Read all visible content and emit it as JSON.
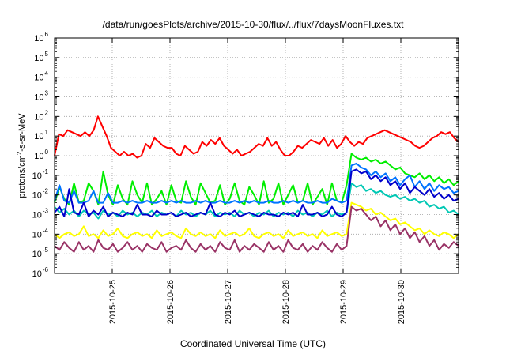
{
  "chart_data": {
    "type": "line",
    "title": "/data/run/goesPlots/archive/2015-10-30/flux/../flux/7daysMoonFluxes.txt",
    "xlabel": "Coordinated Universal Time (UTC)",
    "ylabel_parts": {
      "base": "protons/cm",
      "sup": "2",
      "rest": "-s-sr-MeV"
    },
    "y_scale": "log",
    "x_range_days": [
      0,
      7
    ],
    "ylim_exp": [
      -6,
      6
    ],
    "x_ticks": [
      {
        "day": 1,
        "label": "2015-10-25"
      },
      {
        "day": 2,
        "label": "2015-10-26"
      },
      {
        "day": 3,
        "label": "2015-10-27"
      },
      {
        "day": 4,
        "label": "2015-10-28"
      },
      {
        "day": 5,
        "label": "2015-10-29"
      },
      {
        "day": 6,
        "label": "2015-10-30"
      }
    ],
    "y_ticks_exp": [
      -6,
      -5,
      -4,
      -3,
      -2,
      -1,
      0,
      1,
      2,
      3,
      4,
      5,
      6
    ],
    "grid": true,
    "series": [
      {
        "color": "#ff0000",
        "exp": [
          0.0,
          1.1,
          1.0,
          1.3,
          1.2,
          1.1,
          1.0,
          1.2,
          1.0,
          1.3,
          2.0,
          1.5,
          1.0,
          0.4,
          0.2,
          0.0,
          0.2,
          0.0,
          0.1,
          -0.1,
          0.0,
          0.6,
          0.4,
          0.9,
          0.7,
          0.5,
          0.4,
          0.4,
          0.1,
          0.0,
          0.5,
          0.3,
          0.1,
          0.2,
          0.7,
          0.5,
          0.8,
          0.6,
          0.9,
          0.5,
          0.3,
          0.1,
          0.3,
          0.0,
          0.1,
          0.2,
          0.4,
          0.6,
          0.5,
          0.9,
          0.5,
          0.7,
          0.3,
          0.0,
          0.0,
          0.2,
          0.5,
          0.4,
          0.6,
          0.8,
          0.7,
          0.6,
          0.9,
          0.5,
          0.8,
          0.4,
          0.6,
          1.0,
          0.7,
          0.5,
          0.7,
          0.6,
          0.9,
          1.0,
          1.1,
          1.2,
          1.3,
          1.2,
          1.1,
          1.0,
          0.9,
          0.8,
          0.7,
          0.5,
          0.4,
          0.5,
          0.7,
          0.9,
          1.0,
          1.2,
          1.1,
          1.2,
          0.9,
          0.7
        ]
      },
      {
        "color": "#00ee00",
        "exp": [
          -2.4,
          -1.6,
          -2.2,
          -2.5,
          -1.4,
          -2.4,
          -2.3,
          -1.4,
          -1.8,
          -2.5,
          -0.8,
          -2.0,
          -2.5,
          -1.5,
          -2.2,
          -2.5,
          -1.3,
          -2.0,
          -2.4,
          -1.4,
          -2.5,
          -2.2,
          -1.8,
          -2.5,
          -1.5,
          -2.3,
          -2.4,
          -1.3,
          -2.1,
          -2.5,
          -1.4,
          -1.9,
          -2.4,
          -2.3,
          -1.5,
          -2.5,
          -2.2,
          -1.4,
          -2.3,
          -2.5,
          -1.6,
          -2.0,
          -2.5,
          -1.3,
          -2.4,
          -2.2,
          -1.4,
          -2.5,
          -2.0,
          -1.5,
          -2.4,
          -2.3,
          -1.4,
          -2.5,
          -2.1,
          -1.7,
          -2.5,
          -1.4,
          -2.3,
          -2.4,
          -1.5,
          0.1,
          -0.1,
          -0.2,
          -0.1,
          -0.3,
          -0.2,
          -0.4,
          -0.3,
          -0.5,
          -0.7,
          -0.6,
          -0.9,
          -1.0,
          -1.1,
          -0.9,
          -1.2,
          -1.0,
          -1.3,
          -1.1,
          -1.4,
          -1.2,
          -1.5,
          -1.3
        ]
      },
      {
        "color": "#0073ff",
        "exp": [
          -2.3,
          -1.5,
          -2.3,
          -2.4,
          -1.8,
          -2.4,
          -2.4,
          -2.3,
          -1.8,
          -2.4,
          -2.4,
          -1.9,
          -2.4,
          -2.4,
          -2.3,
          -2.4,
          -2.3,
          -2.4,
          -2.4,
          -2.3,
          -2.4,
          -2.4,
          -2.3,
          -2.4,
          -2.3,
          -2.4,
          -2.3,
          -2.4,
          -2.4,
          -2.3,
          -2.4,
          -2.3,
          -2.4,
          -2.4,
          -2.3,
          -2.4,
          -2.4,
          -2.3,
          -2.4,
          -2.3,
          -2.4,
          -2.3,
          -2.4,
          -2.4,
          -2.3,
          -2.4,
          -2.4,
          -2.3,
          -2.4,
          -2.3,
          -2.4,
          -2.3,
          -2.4,
          -2.4,
          -2.3,
          -2.4,
          -2.4,
          -2.2,
          -2.3,
          -2.4,
          -2.3,
          -0.5,
          -0.4,
          -0.6,
          -0.7,
          -1.0,
          -0.8,
          -1.1,
          -0.9,
          -1.3,
          -1.1,
          -1.5,
          -1.2,
          -1.0,
          -1.6,
          -1.3,
          -1.7,
          -1.4,
          -1.8,
          -1.5,
          -1.7,
          -1.6,
          -1.9,
          -1.8
        ]
      },
      {
        "color": "#00c8b4",
        "exp": [
          -2.6,
          -2.9,
          -2.7,
          -3.0,
          -2.8,
          -3.1,
          -2.8,
          -3.0,
          -2.9,
          -3.2,
          -2.8,
          -3.0,
          -2.9,
          -3.1,
          -2.8,
          -3.0,
          -2.9,
          -3.1,
          -2.9,
          -3.0,
          -2.8,
          -3.1,
          -2.9,
          -3.0,
          -2.9,
          -3.1,
          -2.8,
          -3.0,
          -2.9,
          -3.1,
          -2.9,
          -3.0,
          -2.8,
          -3.1,
          -2.9,
          -3.0,
          -2.9,
          -3.1,
          -2.8,
          -3.0,
          -2.9,
          -3.1,
          -2.9,
          -3.0,
          -2.8,
          -3.1,
          -2.9,
          -3.0,
          -2.9,
          -3.1,
          -2.8,
          -3.0,
          -2.9,
          -3.1,
          -2.9,
          -3.0,
          -2.8,
          -3.1,
          -2.9,
          -3.0,
          -2.9,
          -1.4,
          -1.6,
          -1.5,
          -1.8,
          -1.7,
          -1.9,
          -1.8,
          -2.0,
          -2.1,
          -2.0,
          -2.2,
          -2.1,
          -2.3,
          -2.2,
          -2.4,
          -2.3,
          -2.6,
          -2.5,
          -2.7,
          -2.6,
          -2.9,
          -2.8,
          -3.0
        ]
      },
      {
        "color": "#0000cc",
        "exp": [
          -2.9,
          -2.6,
          -3.1,
          -1.7,
          -2.9,
          -3.0,
          -2.4,
          -3.1,
          -2.8,
          -3.0,
          -2.6,
          -3.1,
          -2.9,
          -3.0,
          -3.1,
          -2.9,
          -3.0,
          -2.5,
          -3.0,
          -3.0,
          -3.1,
          -2.8,
          -3.0,
          -3.0,
          -2.9,
          -3.1,
          -3.0,
          -2.9,
          -3.1,
          -3.0,
          -2.9,
          -3.0,
          -2.4,
          -3.0,
          -3.1,
          -2.9,
          -3.0,
          -2.8,
          -3.1,
          -3.0,
          -2.9,
          -3.0,
          -3.1,
          -2.9,
          -3.0,
          -3.0,
          -3.1,
          -2.9,
          -3.0,
          -2.9,
          -3.1,
          -2.5,
          -3.0,
          -3.0,
          -2.9,
          -3.1,
          -3.0,
          -2.6,
          -3.0,
          -3.1,
          -2.9,
          -0.8,
          -0.7,
          -0.9,
          -0.8,
          -1.2,
          -1.0,
          -1.3,
          -1.1,
          -1.5,
          -1.3,
          -1.7,
          -1.4,
          -1.9,
          -1.6,
          -1.8,
          -2.0,
          -1.7,
          -2.1,
          -1.9,
          -2.2,
          -2.0,
          -2.3,
          -2.2
        ]
      },
      {
        "color": "#ffff00",
        "exp": [
          -4.0,
          -4.2,
          -4.0,
          -3.9,
          -4.1,
          -4.0,
          -3.6,
          -4.1,
          -4.0,
          -4.2,
          -3.8,
          -4.1,
          -4.0,
          -3.7,
          -4.1,
          -4.2,
          -4.0,
          -3.9,
          -4.1,
          -4.0,
          -4.2,
          -3.8,
          -4.1,
          -4.0,
          -3.9,
          -4.1,
          -4.2,
          -3.7,
          -4.0,
          -4.1,
          -3.9,
          -4.1,
          -4.0,
          -4.2,
          -3.8,
          -4.1,
          -4.0,
          -3.9,
          -4.1,
          -4.0,
          -3.7,
          -4.1,
          -4.2,
          -4.0,
          -3.9,
          -4.1,
          -4.0,
          -4.2,
          -3.8,
          -4.1,
          -4.0,
          -3.9,
          -4.1,
          -4.0,
          -4.2,
          -3.8,
          -4.1,
          -4.0,
          -3.9,
          -4.1,
          -4.0,
          -2.4,
          -2.5,
          -2.6,
          -2.8,
          -2.7,
          -3.0,
          -2.9,
          -3.1,
          -3.3,
          -3.2,
          -3.5,
          -3.4,
          -3.6,
          -3.8,
          -3.7,
          -4.0,
          -3.8,
          -4.0,
          -4.1,
          -3.9,
          -4.0,
          -4.2,
          -4.0
        ]
      },
      {
        "color": "#993366",
        "exp": [
          -4.6,
          -4.8,
          -4.4,
          -4.7,
          -4.9,
          -4.4,
          -4.8,
          -4.6,
          -4.9,
          -4.3,
          -4.7,
          -4.8,
          -4.5,
          -4.9,
          -4.7,
          -4.4,
          -4.8,
          -4.6,
          -4.9,
          -4.5,
          -4.7,
          -4.8,
          -4.4,
          -4.9,
          -4.7,
          -4.6,
          -4.8,
          -4.3,
          -4.7,
          -4.9,
          -4.5,
          -4.8,
          -4.6,
          -4.9,
          -4.4,
          -4.7,
          -4.8,
          -4.3,
          -4.9,
          -4.6,
          -4.8,
          -4.5,
          -4.7,
          -4.9,
          -4.4,
          -4.8,
          -4.6,
          -4.9,
          -4.3,
          -4.7,
          -4.8,
          -4.5,
          -4.9,
          -4.6,
          -4.8,
          -4.4,
          -4.7,
          -4.9,
          -4.5,
          -4.8,
          -4.6,
          -2.6,
          -2.8,
          -2.7,
          -3.0,
          -3.3,
          -3.1,
          -3.6,
          -3.3,
          -3.8,
          -3.5,
          -4.0,
          -3.7,
          -4.2,
          -3.9,
          -4.4,
          -4.1,
          -4.6,
          -4.3,
          -4.8,
          -4.5,
          -4.7,
          -4.4,
          -4.6
        ]
      }
    ]
  }
}
